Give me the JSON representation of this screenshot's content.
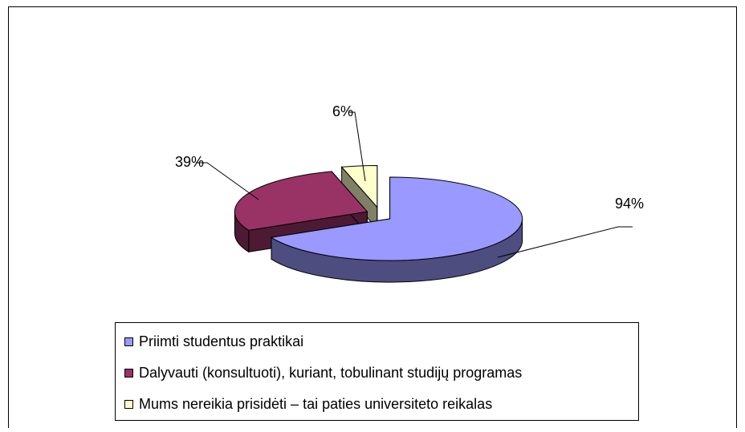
{
  "chart_data": {
    "type": "pie",
    "legend": "bottom",
    "categories": [
      "Priimti studentus praktikai",
      "Dalyvauti (konsultuoti), kuriant, tobulinant studijų programas",
      "Mums nereikia prisidėti – tai paties universiteto reikalas"
    ],
    "values": [
      94,
      39,
      6
    ],
    "value_labels": [
      "94%",
      "39%",
      "6%"
    ],
    "colors": [
      "#9999ff",
      "#993366",
      "#ffffcc"
    ],
    "side_colors": [
      "#4d4d80",
      "#4d1a33",
      "#808066"
    ]
  }
}
